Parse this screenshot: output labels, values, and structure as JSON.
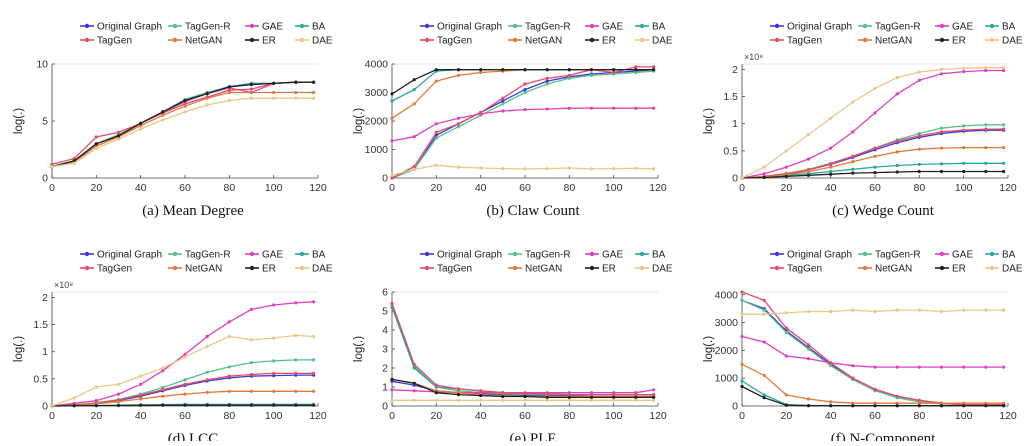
{
  "legend_labels": [
    "Original Graph",
    "TagGen-R",
    "GAE",
    "BA",
    "TagGen",
    "NetGAN",
    "ER",
    "DAE"
  ],
  "series_colors": {
    "Original Graph": "#3a3ad8",
    "TagGen-R": "#56c08a",
    "GAE": "#e040c0",
    "BA": "#2aa8a0",
    "TagGen": "#e84a6a",
    "NetGAN": "#e07a3a",
    "ER": "#222222",
    "DAE": "#e8c888"
  },
  "chart_data": [
    {
      "type": "line",
      "caption": "(a) Mean Degree",
      "ylabel": "log(.)",
      "xlim": [
        0,
        120
      ],
      "ylim": [
        0,
        10
      ],
      "xticks": [
        0,
        20,
        40,
        60,
        80,
        100,
        120
      ],
      "yticks": [
        0,
        5,
        10
      ],
      "x": [
        0,
        10,
        20,
        30,
        40,
        50,
        60,
        70,
        80,
        90,
        100,
        110,
        118
      ],
      "series": [
        {
          "name": "Original Graph",
          "values": [
            1.0,
            1.5,
            3.0,
            3.7,
            4.8,
            5.8,
            6.8,
            7.4,
            8.0,
            8.2,
            8.3,
            8.4,
            8.4
          ]
        },
        {
          "name": "TagGen-R",
          "values": [
            1.0,
            1.5,
            3.0,
            3.8,
            4.8,
            5.8,
            6.9,
            7.5,
            8.0,
            8.3,
            8.3,
            8.4,
            8.4
          ]
        },
        {
          "name": "GAE",
          "values": [
            1.0,
            1.5,
            3.0,
            3.7,
            4.8,
            5.8,
            6.7,
            7.4,
            7.9,
            7.5,
            8.3,
            8.4,
            8.4
          ]
        },
        {
          "name": "BA",
          "values": [
            1.0,
            1.5,
            3.0,
            3.7,
            4.8,
            5.8,
            6.8,
            7.4,
            8.0,
            8.3,
            8.3,
            8.4,
            8.4
          ]
        },
        {
          "name": "TagGen",
          "values": [
            1.2,
            1.7,
            3.6,
            4.0,
            4.8,
            5.7,
            6.5,
            7.1,
            7.7,
            7.8,
            8.3,
            8.4,
            8.4
          ]
        },
        {
          "name": "NetGAN",
          "values": [
            1.0,
            1.4,
            2.8,
            3.6,
            4.6,
            5.5,
            6.3,
            7.0,
            7.5,
            7.5,
            7.5,
            7.5,
            7.5
          ]
        },
        {
          "name": "ER",
          "values": [
            1.0,
            1.5,
            3.0,
            3.7,
            4.8,
            5.8,
            6.8,
            7.4,
            8.0,
            8.2,
            8.3,
            8.4,
            8.4
          ]
        },
        {
          "name": "DAE",
          "values": [
            1.0,
            1.3,
            2.6,
            3.4,
            4.3,
            5.1,
            5.8,
            6.4,
            6.8,
            7.0,
            7.0,
            7.0,
            7.0
          ]
        }
      ]
    },
    {
      "type": "line",
      "caption": "(b) Claw Count",
      "ylabel": "log(.)",
      "xlim": [
        0,
        120
      ],
      "ylim": [
        0,
        4000
      ],
      "xticks": [
        0,
        20,
        40,
        60,
        80,
        100,
        120
      ],
      "yticks": [
        0,
        1000,
        2000,
        3000,
        4000
      ],
      "x": [
        0,
        10,
        20,
        30,
        40,
        50,
        60,
        70,
        80,
        90,
        100,
        110,
        118
      ],
      "series": [
        {
          "name": "Original Graph",
          "values": [
            0,
            300,
            1500,
            1900,
            2300,
            2700,
            3100,
            3400,
            3550,
            3650,
            3700,
            3750,
            3800
          ]
        },
        {
          "name": "TagGen-R",
          "values": [
            0,
            300,
            1400,
            1800,
            2200,
            2600,
            3000,
            3300,
            3500,
            3600,
            3650,
            3700,
            3750
          ]
        },
        {
          "name": "GAE",
          "values": [
            1300,
            1450,
            1900,
            2100,
            2250,
            2350,
            2400,
            2420,
            2450,
            2450,
            2450,
            2450,
            2450
          ]
        },
        {
          "name": "BA",
          "values": [
            2700,
            3100,
            3750,
            3800,
            3800,
            3800,
            3800,
            3800,
            3800,
            3800,
            3800,
            3800,
            3800
          ]
        },
        {
          "name": "TagGen",
          "values": [
            0,
            400,
            1600,
            1900,
            2300,
            2800,
            3300,
            3500,
            3600,
            3800,
            3700,
            3900,
            3900
          ]
        },
        {
          "name": "NetGAN",
          "values": [
            2100,
            2600,
            3400,
            3600,
            3700,
            3750,
            3800,
            3800,
            3800,
            3800,
            3800,
            3800,
            3800
          ]
        },
        {
          "name": "ER",
          "values": [
            2950,
            3450,
            3800,
            3800,
            3800,
            3800,
            3800,
            3800,
            3800,
            3800,
            3800,
            3800,
            3800
          ]
        },
        {
          "name": "DAE",
          "values": [
            100,
            300,
            450,
            380,
            350,
            330,
            320,
            330,
            350,
            320,
            330,
            340,
            320
          ]
        }
      ]
    },
    {
      "type": "line",
      "caption": "(c) Wedge Count",
      "ylabel": "log(.)",
      "multiplier": "×10⁸",
      "xlim": [
        0,
        120
      ],
      "ylim": [
        0,
        2.1
      ],
      "xticks": [
        0,
        20,
        40,
        60,
        80,
        100,
        120
      ],
      "yticks": [
        0,
        0.5,
        1,
        1.5,
        2
      ],
      "ytick_labels": [
        "0",
        "0.5",
        "1",
        "1.5",
        "2"
      ],
      "x": [
        0,
        10,
        20,
        30,
        40,
        50,
        60,
        70,
        80,
        90,
        100,
        110,
        118
      ],
      "series": [
        {
          "name": "Original Graph",
          "values": [
            0,
            0.03,
            0.08,
            0.15,
            0.25,
            0.38,
            0.52,
            0.65,
            0.75,
            0.82,
            0.86,
            0.88,
            0.88
          ]
        },
        {
          "name": "TagGen-R",
          "values": [
            0,
            0.03,
            0.08,
            0.16,
            0.27,
            0.4,
            0.55,
            0.7,
            0.82,
            0.92,
            0.96,
            0.98,
            0.98
          ]
        },
        {
          "name": "GAE",
          "values": [
            0,
            0.08,
            0.2,
            0.35,
            0.55,
            0.85,
            1.2,
            1.55,
            1.8,
            1.92,
            1.96,
            1.98,
            1.98
          ]
        },
        {
          "name": "BA",
          "values": [
            0,
            0.02,
            0.05,
            0.08,
            0.12,
            0.16,
            0.2,
            0.23,
            0.25,
            0.26,
            0.27,
            0.27,
            0.27
          ]
        },
        {
          "name": "TagGen",
          "values": [
            0,
            0.03,
            0.08,
            0.15,
            0.26,
            0.4,
            0.55,
            0.68,
            0.78,
            0.85,
            0.88,
            0.9,
            0.9
          ]
        },
        {
          "name": "NetGAN",
          "values": [
            0,
            0.02,
            0.06,
            0.12,
            0.2,
            0.3,
            0.4,
            0.48,
            0.53,
            0.55,
            0.56,
            0.56,
            0.56
          ]
        },
        {
          "name": "ER",
          "values": [
            0,
            0.01,
            0.03,
            0.05,
            0.07,
            0.09,
            0.1,
            0.11,
            0.12,
            0.12,
            0.12,
            0.12,
            0.12
          ]
        },
        {
          "name": "DAE",
          "values": [
            0,
            0.2,
            0.5,
            0.8,
            1.1,
            1.4,
            1.65,
            1.85,
            1.95,
            2.0,
            2.02,
            2.03,
            2.03
          ]
        }
      ]
    },
    {
      "type": "line",
      "caption": "(d) LCC",
      "ylabel": "log(.)",
      "multiplier": "×10⁸",
      "xlim": [
        0,
        120
      ],
      "ylim": [
        0,
        2.1
      ],
      "xticks": [
        0,
        20,
        40,
        60,
        80,
        100,
        120
      ],
      "yticks": [
        0,
        0.5,
        1,
        1.5,
        2
      ],
      "ytick_labels": [
        "0",
        "0.5",
        "1",
        "1.5",
        "2"
      ],
      "x": [
        0,
        10,
        20,
        30,
        40,
        50,
        60,
        70,
        80,
        90,
        100,
        110,
        118
      ],
      "series": [
        {
          "name": "Original Graph",
          "values": [
            0,
            0.02,
            0.05,
            0.1,
            0.18,
            0.28,
            0.38,
            0.46,
            0.52,
            0.55,
            0.56,
            0.57,
            0.57
          ]
        },
        {
          "name": "TagGen-R",
          "values": [
            0,
            0.02,
            0.06,
            0.12,
            0.22,
            0.34,
            0.48,
            0.62,
            0.72,
            0.8,
            0.83,
            0.85,
            0.85
          ]
        },
        {
          "name": "GAE",
          "values": [
            0,
            0.05,
            0.1,
            0.22,
            0.4,
            0.65,
            0.95,
            1.28,
            1.55,
            1.78,
            1.86,
            1.9,
            1.92
          ]
        },
        {
          "name": "BA",
          "values": [
            0,
            0.005,
            0.01,
            0.015,
            0.02,
            0.025,
            0.03,
            0.03,
            0.03,
            0.03,
            0.03,
            0.03,
            0.03
          ]
        },
        {
          "name": "TagGen",
          "values": [
            0,
            0.02,
            0.05,
            0.11,
            0.2,
            0.3,
            0.4,
            0.48,
            0.55,
            0.58,
            0.6,
            0.6,
            0.6
          ]
        },
        {
          "name": "NetGAN",
          "values": [
            0,
            0.01,
            0.04,
            0.08,
            0.13,
            0.18,
            0.22,
            0.25,
            0.27,
            0.27,
            0.27,
            0.27,
            0.27
          ]
        },
        {
          "name": "ER",
          "values": [
            0,
            0.005,
            0.008,
            0.01,
            0.012,
            0.014,
            0.015,
            0.015,
            0.015,
            0.015,
            0.015,
            0.015,
            0.015
          ]
        },
        {
          "name": "DAE",
          "values": [
            0,
            0.15,
            0.35,
            0.4,
            0.55,
            0.7,
            0.9,
            1.1,
            1.28,
            1.22,
            1.25,
            1.3,
            1.28
          ]
        }
      ]
    },
    {
      "type": "line",
      "caption": "(e) PLE",
      "ylabel": "log(.)",
      "xlim": [
        0,
        120
      ],
      "ylim": [
        0,
        6
      ],
      "xticks": [
        0,
        20,
        40,
        60,
        80,
        100,
        120
      ],
      "yticks": [
        0,
        1,
        2,
        3,
        4,
        5,
        6
      ],
      "x": [
        0,
        10,
        20,
        30,
        40,
        50,
        60,
        70,
        80,
        90,
        100,
        110,
        118
      ],
      "series": [
        {
          "name": "Original Graph",
          "values": [
            1.3,
            1.1,
            0.8,
            0.7,
            0.65,
            0.6,
            0.55,
            0.55,
            0.55,
            0.5,
            0.5,
            0.5,
            0.5
          ]
        },
        {
          "name": "TagGen-R",
          "values": [
            5.3,
            2.1,
            1.0,
            0.8,
            0.7,
            0.65,
            0.6,
            0.6,
            0.6,
            0.6,
            0.6,
            0.6,
            0.6
          ]
        },
        {
          "name": "GAE",
          "values": [
            0.85,
            0.8,
            0.75,
            0.7,
            0.7,
            0.7,
            0.7,
            0.7,
            0.7,
            0.7,
            0.7,
            0.7,
            0.85
          ]
        },
        {
          "name": "BA",
          "values": [
            5.2,
            2.0,
            1.0,
            0.9,
            0.8,
            0.7,
            0.65,
            0.65,
            0.6,
            0.6,
            0.6,
            0.6,
            0.6
          ]
        },
        {
          "name": "TagGen",
          "values": [
            5.4,
            2.2,
            1.1,
            0.9,
            0.8,
            0.7,
            0.65,
            0.65,
            0.6,
            0.6,
            0.6,
            0.6,
            0.6
          ]
        },
        {
          "name": "NetGAN",
          "values": [
            1.4,
            1.2,
            0.8,
            0.7,
            0.6,
            0.55,
            0.5,
            0.5,
            0.5,
            0.5,
            0.5,
            0.5,
            0.5
          ]
        },
        {
          "name": "ER",
          "values": [
            1.4,
            1.2,
            0.7,
            0.6,
            0.55,
            0.5,
            0.5,
            0.45,
            0.45,
            0.45,
            0.45,
            0.45,
            0.45
          ]
        },
        {
          "name": "DAE",
          "values": [
            0.3,
            0.3,
            0.3,
            0.3,
            0.3,
            0.3,
            0.3,
            0.3,
            0.3,
            0.3,
            0.3,
            0.3,
            0.3
          ]
        }
      ]
    },
    {
      "type": "line",
      "caption": "(f) N-Component",
      "ylabel": "log(.)",
      "xlim": [
        0,
        120
      ],
      "ylim": [
        0,
        4100
      ],
      "xticks": [
        0,
        20,
        40,
        60,
        80,
        100,
        120
      ],
      "yticks": [
        0,
        1000,
        2000,
        3000,
        4000
      ],
      "x": [
        0,
        10,
        20,
        30,
        40,
        50,
        60,
        70,
        80,
        90,
        100,
        110,
        118
      ],
      "series": [
        {
          "name": "Original Graph",
          "values": [
            3800,
            3500,
            2700,
            2100,
            1500,
            1000,
            600,
            350,
            200,
            100,
            50,
            50,
            50
          ]
        },
        {
          "name": "TagGen-R",
          "values": [
            3800,
            3450,
            2650,
            2050,
            1450,
            950,
            550,
            300,
            150,
            80,
            50,
            40,
            40
          ]
        },
        {
          "name": "GAE",
          "values": [
            2500,
            2300,
            1800,
            1700,
            1550,
            1450,
            1400,
            1400,
            1400,
            1400,
            1400,
            1400,
            1400
          ]
        },
        {
          "name": "BA",
          "values": [
            900,
            400,
            50,
            20,
            10,
            10,
            10,
            10,
            10,
            10,
            10,
            10,
            10
          ]
        },
        {
          "name": "TagGen",
          "values": [
            4100,
            3800,
            2800,
            2200,
            1550,
            1000,
            600,
            350,
            200,
            100,
            50,
            50,
            50
          ]
        },
        {
          "name": "NetGAN",
          "values": [
            1500,
            1100,
            400,
            250,
            150,
            100,
            100,
            100,
            100,
            100,
            100,
            100,
            100
          ]
        },
        {
          "name": "ER",
          "values": [
            700,
            300,
            30,
            10,
            10,
            10,
            10,
            10,
            10,
            10,
            10,
            10,
            10
          ]
        },
        {
          "name": "DAE",
          "values": [
            3300,
            3300,
            3350,
            3400,
            3400,
            3450,
            3400,
            3450,
            3450,
            3400,
            3450,
            3450,
            3450
          ]
        }
      ]
    }
  ]
}
